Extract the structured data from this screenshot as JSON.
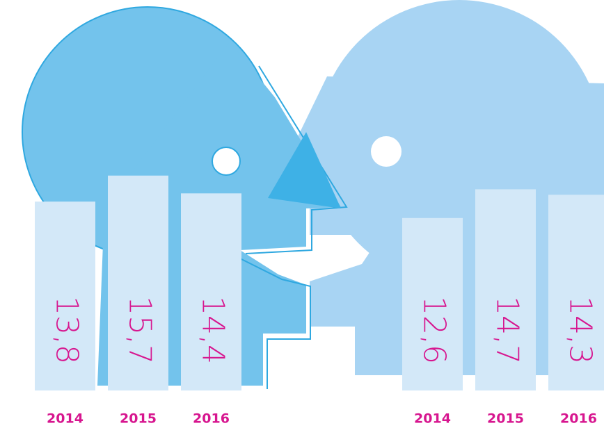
{
  "chart_data": [
    {
      "type": "bar",
      "categories": [
        "2014",
        "2015",
        "2016"
      ],
      "values": [
        13.8,
        15.7,
        14.4
      ],
      "value_labels": [
        "13,8",
        "15,7",
        "14,4"
      ],
      "color": "#d3e8f8"
    },
    {
      "type": "bar",
      "categories": [
        "2014",
        "2015",
        "2016"
      ],
      "values": [
        12.6,
        14.7,
        14.3
      ],
      "value_labels": [
        "12,6",
        "14,7",
        "14,3"
      ],
      "color": "#d3e8f8"
    }
  ]
}
